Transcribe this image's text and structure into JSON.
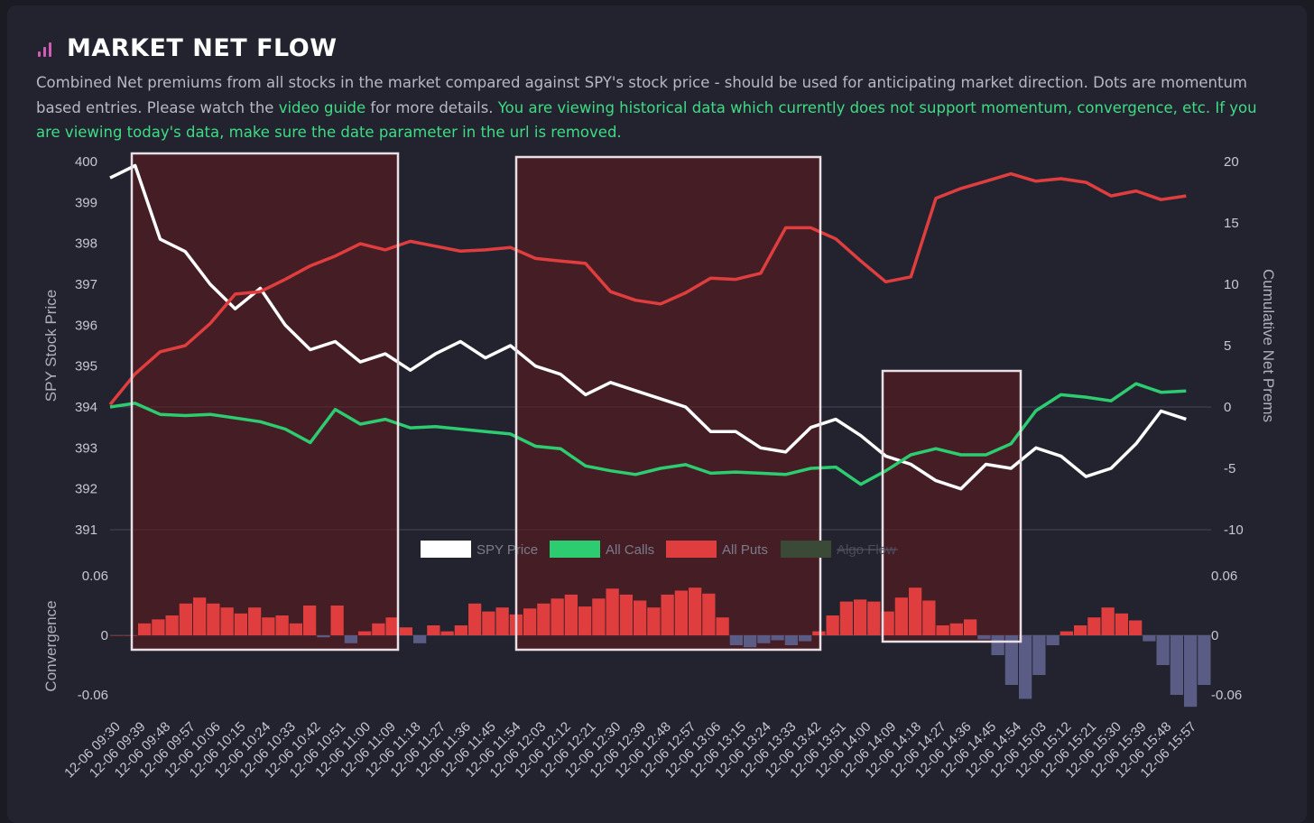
{
  "header": {
    "icon": "bar-chart-icon",
    "title": "MARKET NET FLOW",
    "description_part1": "Combined Net premiums from all stocks in the market compared against SPY's stock price - should be used for anticipating market direction. Dots are momentum based entries. Please watch the ",
    "video_guide_link": "video guide",
    "description_part2": " for more details. ",
    "historical_notice": "You are viewing historical data which currently does not support momentum, convergence, etc. If you are viewing today's data, make sure the date parameter in the url is removed.",
    "accent_color": "#d45bb5",
    "notice_color": "#3ddc84"
  },
  "chart_data": [
    {
      "type": "line",
      "title": "Market Net Flow",
      "x": [
        "12-06 09:30",
        "12-06 09:39",
        "12-06 09:48",
        "12-06 09:57",
        "12-06 10:06",
        "12-06 10:15",
        "12-06 10:24",
        "12-06 10:33",
        "12-06 10:42",
        "12-06 10:51",
        "12-06 11:00",
        "12-06 11:09",
        "12-06 11:18",
        "12-06 11:27",
        "12-06 11:36",
        "12-06 11:45",
        "12-06 11:54",
        "12-06 12:03",
        "12-06 12:12",
        "12-06 12:21",
        "12-06 12:30",
        "12-06 12:39",
        "12-06 12:48",
        "12-06 12:57",
        "12-06 13:06",
        "12-06 13:15",
        "12-06 13:24",
        "12-06 13:33",
        "12-06 13:42",
        "12-06 13:51",
        "12-06 14:00",
        "12-06 14:09",
        "12-06 14:18",
        "12-06 14:27",
        "12-06 14:36",
        "12-06 14:45",
        "12-06 14:54",
        "12-06 15:03",
        "12-06 15:12",
        "12-06 15:21",
        "12-06 15:30",
        "12-06 15:39",
        "12-06 15:48",
        "12-06 15:57"
      ],
      "xlabel": "",
      "y_left": {
        "label": "SPY Stock Price",
        "ticks": [
          400,
          399,
          398,
          397,
          396,
          395,
          394,
          393,
          392,
          391
        ],
        "range": [
          391,
          400
        ]
      },
      "y_right": {
        "label": "Cumulative Net Prems",
        "ticks": [
          20,
          15,
          10,
          5,
          0,
          -5,
          -10
        ],
        "range": [
          -10,
          20
        ]
      },
      "series": [
        {
          "name": "SPY Price",
          "axis": "left",
          "color": "#ffffff",
          "values": [
            399.6,
            399.9,
            398.1,
            397.8,
            397.0,
            396.4,
            396.9,
            396.0,
            395.4,
            395.6,
            395.1,
            395.3,
            394.9,
            395.3,
            395.6,
            395.2,
            395.5,
            395.0,
            394.8,
            394.3,
            394.6,
            394.4,
            394.2,
            394.0,
            393.4,
            393.4,
            393.0,
            392.9,
            393.5,
            393.7,
            393.3,
            392.8,
            392.6,
            392.2,
            392.0,
            392.6,
            392.5,
            393.0,
            392.8,
            392.3,
            392.5,
            393.1,
            393.9,
            393.7
          ]
        },
        {
          "name": "All Calls",
          "axis": "right",
          "color": "#2ecc71",
          "values": [
            0.0,
            0.3,
            -0.6,
            -0.7,
            -0.6,
            -0.9,
            -1.2,
            -1.8,
            -2.9,
            -0.2,
            -1.4,
            -1.0,
            -1.7,
            -1.6,
            -1.8,
            -2.0,
            -2.2,
            -3.2,
            -3.4,
            -4.8,
            -5.2,
            -5.5,
            -5.0,
            -4.7,
            -5.4,
            -5.3,
            -5.4,
            -5.5,
            -5.0,
            -4.9,
            -6.3,
            -5.2,
            -3.9,
            -3.4,
            -3.9,
            -3.9,
            -3.0,
            -0.3,
            1.0,
            0.8,
            0.5,
            1.9,
            1.2,
            1.3
          ]
        },
        {
          "name": "All Puts",
          "axis": "right",
          "color": "#e03e3e",
          "values": [
            0.2,
            2.7,
            4.5,
            5.0,
            6.8,
            9.2,
            9.4,
            10.4,
            11.5,
            12.3,
            13.3,
            12.8,
            13.5,
            13.1,
            12.7,
            12.8,
            13.0,
            12.1,
            11.9,
            11.7,
            9.4,
            8.7,
            8.4,
            9.3,
            10.5,
            10.4,
            10.9,
            14.6,
            14.6,
            13.7,
            11.9,
            10.2,
            10.6,
            17.0,
            17.8,
            18.4,
            19.0,
            18.4,
            18.6,
            18.3,
            17.2,
            17.6,
            16.9,
            17.2
          ]
        },
        {
          "name": "Algo Flow",
          "axis": "right",
          "color": "#3b4a36",
          "hidden": true,
          "values": []
        }
      ],
      "legend": {
        "position": "bottom-center",
        "entries": [
          "SPY Price",
          "All Calls",
          "All Puts",
          "Algo Flow"
        ],
        "hidden_entries": [
          "Algo Flow"
        ]
      },
      "grid": true
    },
    {
      "type": "bar",
      "title": "Convergence",
      "x_ref": "same as line chart",
      "ylabel": "Convergence",
      "y_ticks": [
        0.06,
        0,
        -0.06
      ],
      "ylim": [
        -0.06,
        0.06
      ],
      "positive_color": "#e03e3e",
      "negative_color": "#5a5c86",
      "values": [
        0.0,
        0.0,
        0.012,
        0.016,
        0.02,
        0.032,
        0.038,
        0.032,
        0.028,
        0.022,
        0.028,
        0.018,
        0.02,
        0.012,
        0.03,
        -0.002,
        0.03,
        -0.008,
        0.004,
        0.012,
        0.018,
        0.008,
        -0.008,
        0.01,
        0.004,
        0.01,
        0.032,
        0.024,
        0.028,
        0.021,
        0.027,
        0.032,
        0.037,
        0.041,
        0.029,
        0.037,
        0.047,
        0.041,
        0.035,
        0.028,
        0.041,
        0.045,
        0.048,
        0.042,
        0.018,
        -0.01,
        -0.012,
        -0.008,
        -0.005,
        -0.01,
        -0.006,
        0.004,
        0.02,
        0.034,
        0.036,
        0.034,
        0.024,
        0.038,
        0.048,
        0.035,
        0.01,
        0.012,
        0.016,
        -0.004,
        -0.02,
        -0.05,
        -0.064,
        -0.04,
        -0.01,
        0.004,
        0.01,
        0.018,
        0.028,
        0.022,
        0.015,
        -0.006,
        -0.03,
        -0.06,
        -0.072,
        -0.05
      ]
    }
  ],
  "highlight_boxes": [
    {
      "label": "highlight-1",
      "from": "12-06 09:39",
      "to": "12-06 11:09"
    },
    {
      "label": "highlight-2",
      "from": "12-06 11:54",
      "to": "12-06 13:42"
    },
    {
      "label": "highlight-3",
      "from": "12-06 14:09",
      "to": "12-06 14:54"
    }
  ]
}
